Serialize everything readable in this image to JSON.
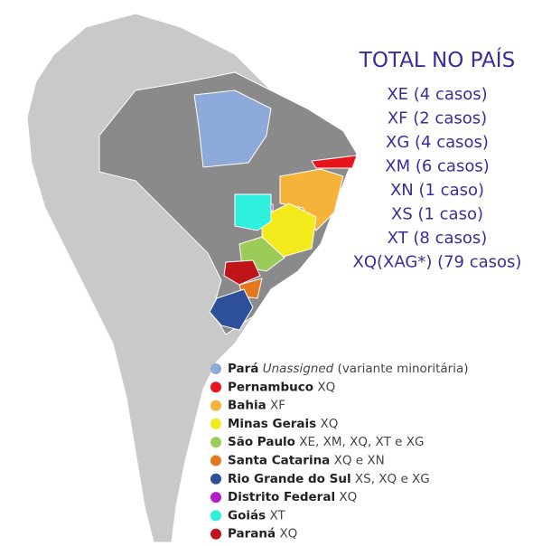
{
  "title": "TOTAL NO PAÍS",
  "totals": [
    "XE (4 casos)",
    "XF (2 casos)",
    "XG (4 casos)",
    "XM (6 casos)",
    "XN (1 caso)",
    "XS (1 caso)",
    "XT (8 casos)",
    "XQ(XAG*) (79 casos)"
  ],
  "legend": [
    {
      "state": "Pará",
      "detail": "Unassigned",
      "note": "(variante minoritária)",
      "color": "#8eaadb"
    },
    {
      "state": "Pernambuco",
      "detail": "XQ",
      "color": "#e8141b"
    },
    {
      "state": "Bahia",
      "detail": "XF",
      "color": "#f6b33a"
    },
    {
      "state": "Minas Gerais",
      "detail": "XQ",
      "color": "#f2ea1a"
    },
    {
      "state": "São Paulo",
      "detail": "XE, XM, XQ, XT e XG",
      "color": "#9bcc5a"
    },
    {
      "state": "Santa Catarina",
      "detail": "XQ e XN",
      "color": "#e5781f"
    },
    {
      "state": "Rio Grande do Sul",
      "detail": "XS, XQ e XG",
      "color": "#2e509a"
    },
    {
      "state": "Distrito Federal",
      "detail": "XQ",
      "color": "#b41ec8"
    },
    {
      "state": "Goiás",
      "detail": "XT",
      "color": "#2ef0dc"
    },
    {
      "state": "Paraná",
      "detail": "XQ",
      "color": "#c0141b"
    }
  ]
}
